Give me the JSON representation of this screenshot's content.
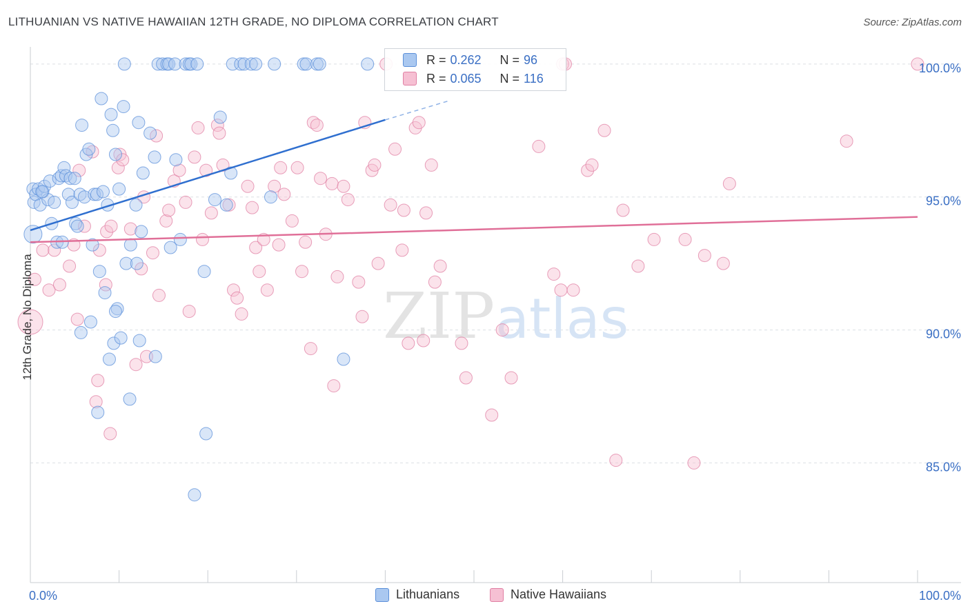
{
  "title": "LITHUANIAN VS NATIVE HAWAIIAN 12TH GRADE, NO DIPLOMA CORRELATION CHART",
  "source": "Source: ZipAtlas.com",
  "watermark": {
    "zip": "ZIP",
    "atlas": "atlas"
  },
  "legend": {
    "r_label": "R =",
    "n_label": "N =",
    "series": [
      {
        "name": "Lithuanians",
        "r": "0.262",
        "n": "96",
        "color": "#5b8fd9",
        "fill": "#aac8f0"
      },
      {
        "name": "Native Hawaiians",
        "r": "0.065",
        "n": "116",
        "color": "#e07fa3",
        "fill": "#f6c0d3"
      }
    ]
  },
  "chart_data": {
    "type": "scatter",
    "title": "LITHUANIAN VS NATIVE HAWAIIAN 12TH GRADE, NO DIPLOMA CORRELATION CHART",
    "xlabel": "",
    "ylabel": "12th Grade, No Diploma",
    "xlim": [
      0,
      100
    ],
    "ylim": [
      80.5,
      100.8
    ],
    "x_tick_labels": [
      "0.0%",
      "100.0%"
    ],
    "y_ticks": [
      85,
      90,
      95,
      100
    ],
    "y_tick_labels": [
      "85.0%",
      "90.0%",
      "95.0%",
      "100.0%"
    ],
    "grid": true,
    "series": [
      {
        "name": "Lithuanians",
        "color": "#5b8fd9",
        "trend": {
          "x": [
            0,
            40
          ],
          "y": [
            93.75,
            97.9
          ],
          "dashed_to": [
            47,
            98.6
          ]
        },
        "points": [
          [
            0.3,
            93.6
          ],
          [
            0.3,
            95.3
          ],
          [
            0.4,
            94.8
          ],
          [
            0.6,
            95.1
          ],
          [
            0.9,
            95.3
          ],
          [
            1.1,
            94.7
          ],
          [
            1.4,
            95.2
          ],
          [
            1.6,
            95.4
          ],
          [
            2.0,
            94.9
          ],
          [
            2.2,
            95.6
          ],
          [
            2.4,
            94.0
          ],
          [
            2.7,
            94.8
          ],
          [
            3.0,
            93.3
          ],
          [
            3.2,
            95.7
          ],
          [
            3.5,
            95.8
          ],
          [
            3.6,
            93.3
          ],
          [
            3.8,
            96.1
          ],
          [
            4.0,
            95.8
          ],
          [
            4.3,
            95.1
          ],
          [
            4.5,
            95.7
          ],
          [
            4.7,
            94.8
          ],
          [
            5.0,
            95.7
          ],
          [
            5.1,
            94.0
          ],
          [
            5.3,
            93.9
          ],
          [
            5.6,
            95.1
          ],
          [
            5.8,
            97.7
          ],
          [
            6.1,
            95.0
          ],
          [
            6.3,
            96.6
          ],
          [
            6.6,
            96.8
          ],
          [
            7.0,
            93.2
          ],
          [
            7.2,
            95.1
          ],
          [
            7.5,
            95.1
          ],
          [
            7.8,
            92.2
          ],
          [
            8.0,
            98.7
          ],
          [
            8.2,
            95.2
          ],
          [
            8.4,
            91.4
          ],
          [
            8.7,
            94.7
          ],
          [
            8.9,
            88.9
          ],
          [
            9.1,
            98.1
          ],
          [
            9.3,
            97.5
          ],
          [
            9.4,
            89.5
          ],
          [
            9.6,
            96.6
          ],
          [
            9.8,
            90.8
          ],
          [
            10.0,
            95.3
          ],
          [
            10.2,
            89.7
          ],
          [
            10.5,
            98.4
          ],
          [
            10.6,
            100.0
          ],
          [
            10.8,
            92.5
          ],
          [
            11.2,
            87.4
          ],
          [
            11.3,
            93.2
          ],
          [
            11.9,
            94.7
          ],
          [
            12.2,
            97.8
          ],
          [
            12.3,
            89.6
          ],
          [
            12.5,
            93.7
          ],
          [
            12.7,
            95.9
          ],
          [
            13.5,
            97.4
          ],
          [
            14.0,
            96.5
          ],
          [
            14.1,
            89.0
          ],
          [
            14.4,
            100.0
          ],
          [
            14.9,
            100.0
          ],
          [
            15.4,
            100.0
          ],
          [
            15.6,
            100.0
          ],
          [
            15.8,
            93.1
          ],
          [
            16.3,
            100.0
          ],
          [
            16.4,
            96.4
          ],
          [
            16.9,
            93.4
          ],
          [
            17.5,
            100.0
          ],
          [
            17.9,
            100.0
          ],
          [
            18.1,
            100.0
          ],
          [
            18.8,
            100.0
          ],
          [
            19.6,
            92.2
          ],
          [
            19.8,
            86.1
          ],
          [
            20.8,
            94.9
          ],
          [
            21.4,
            98.0
          ],
          [
            22.1,
            94.7
          ],
          [
            22.6,
            95.9
          ],
          [
            22.8,
            100.0
          ],
          [
            23.7,
            100.0
          ],
          [
            24.1,
            100.0
          ],
          [
            24.9,
            100.0
          ],
          [
            25.4,
            100.0
          ],
          [
            27.1,
            95.0
          ],
          [
            27.5,
            100.0
          ],
          [
            30.8,
            100.0
          ],
          [
            31.1,
            100.0
          ],
          [
            32.3,
            100.0
          ],
          [
            32.6,
            100.0
          ],
          [
            35.3,
            88.9
          ],
          [
            38.0,
            100.0
          ],
          [
            18.5,
            83.8
          ],
          [
            12.0,
            92.5
          ],
          [
            6.8,
            90.3
          ],
          [
            5.7,
            89.9
          ],
          [
            7.6,
            86.9
          ],
          [
            9.6,
            90.7
          ],
          [
            1.3,
            95.2
          ]
        ]
      },
      {
        "name": "Native Hawaiians",
        "color": "#e07fa3",
        "trend": {
          "x": [
            0,
            100
          ],
          "y": [
            93.3,
            94.25
          ]
        },
        "points": [
          [
            0.0,
            90.3
          ],
          [
            0.5,
            91.9
          ],
          [
            1.4,
            93.0
          ],
          [
            2.1,
            91.5
          ],
          [
            2.7,
            93.0
          ],
          [
            3.3,
            91.7
          ],
          [
            4.4,
            92.4
          ],
          [
            4.9,
            93.2
          ],
          [
            5.3,
            90.4
          ],
          [
            5.5,
            96.0
          ],
          [
            6.1,
            93.9
          ],
          [
            7.0,
            96.7
          ],
          [
            7.6,
            88.1
          ],
          [
            7.4,
            87.3
          ],
          [
            7.8,
            93.0
          ],
          [
            8.5,
            91.7
          ],
          [
            8.6,
            93.7
          ],
          [
            9.0,
            86.1
          ],
          [
            9.1,
            93.9
          ],
          [
            9.9,
            96.1
          ],
          [
            10.1,
            96.6
          ],
          [
            10.4,
            96.4
          ],
          [
            11.3,
            93.8
          ],
          [
            11.9,
            88.7
          ],
          [
            12.5,
            92.3
          ],
          [
            12.8,
            95.0
          ],
          [
            13.1,
            89.0
          ],
          [
            13.8,
            92.9
          ],
          [
            14.2,
            97.3
          ],
          [
            14.5,
            91.3
          ],
          [
            15.3,
            94.1
          ],
          [
            15.6,
            94.5
          ],
          [
            16.2,
            95.6
          ],
          [
            16.8,
            96.0
          ],
          [
            17.5,
            94.8
          ],
          [
            17.9,
            90.7
          ],
          [
            18.5,
            96.5
          ],
          [
            18.9,
            97.6
          ],
          [
            19.4,
            93.4
          ],
          [
            19.8,
            96.0
          ],
          [
            20.4,
            94.4
          ],
          [
            21.1,
            97.7
          ],
          [
            21.3,
            97.4
          ],
          [
            21.7,
            96.2
          ],
          [
            22.4,
            94.7
          ],
          [
            22.9,
            91.5
          ],
          [
            23.3,
            91.2
          ],
          [
            23.8,
            90.6
          ],
          [
            24.5,
            95.4
          ],
          [
            25.0,
            94.6
          ],
          [
            25.4,
            93.1
          ],
          [
            25.8,
            92.2
          ],
          [
            26.3,
            93.4
          ],
          [
            26.7,
            91.5
          ],
          [
            27.5,
            95.4
          ],
          [
            28.0,
            93.2
          ],
          [
            28.2,
            96.1
          ],
          [
            28.6,
            95.1
          ],
          [
            29.5,
            94.1
          ],
          [
            30.1,
            96.1
          ],
          [
            30.6,
            92.2
          ],
          [
            31.0,
            93.3
          ],
          [
            31.6,
            89.3
          ],
          [
            31.9,
            97.8
          ],
          [
            32.3,
            97.7
          ],
          [
            32.7,
            95.7
          ],
          [
            33.3,
            93.6
          ],
          [
            34.0,
            95.5
          ],
          [
            34.2,
            87.9
          ],
          [
            34.6,
            92.0
          ],
          [
            35.3,
            95.4
          ],
          [
            35.8,
            94.9
          ],
          [
            37.0,
            91.8
          ],
          [
            37.4,
            90.5
          ],
          [
            37.7,
            97.8
          ],
          [
            38.5,
            96.0
          ],
          [
            38.8,
            96.2
          ],
          [
            39.2,
            92.5
          ],
          [
            40.1,
            100.0
          ],
          [
            40.6,
            94.7
          ],
          [
            41.1,
            96.8
          ],
          [
            41.9,
            93.0
          ],
          [
            42.1,
            94.5
          ],
          [
            42.6,
            89.5
          ],
          [
            43.4,
            97.6
          ],
          [
            43.8,
            97.8
          ],
          [
            44.3,
            89.6
          ],
          [
            44.6,
            94.4
          ],
          [
            45.2,
            96.2
          ],
          [
            45.6,
            91.8
          ],
          [
            46.2,
            92.4
          ],
          [
            48.6,
            89.5
          ],
          [
            49.1,
            88.2
          ],
          [
            52.0,
            86.8
          ],
          [
            53.2,
            90.0
          ],
          [
            54.2,
            88.2
          ],
          [
            57.3,
            96.9
          ],
          [
            59.0,
            92.1
          ],
          [
            59.8,
            91.5
          ],
          [
            60.0,
            100.0
          ],
          [
            60.3,
            100.0
          ],
          [
            61.2,
            91.5
          ],
          [
            62.8,
            96.0
          ],
          [
            63.3,
            96.2
          ],
          [
            64.7,
            97.5
          ],
          [
            66.0,
            85.1
          ],
          [
            66.8,
            94.5
          ],
          [
            68.5,
            92.4
          ],
          [
            70.3,
            93.4
          ],
          [
            73.8,
            93.4
          ],
          [
            74.8,
            85.0
          ],
          [
            76.0,
            92.8
          ],
          [
            78.1,
            92.5
          ],
          [
            78.8,
            95.5
          ],
          [
            92.0,
            97.1
          ],
          [
            100.0,
            100.0
          ]
        ]
      }
    ]
  }
}
